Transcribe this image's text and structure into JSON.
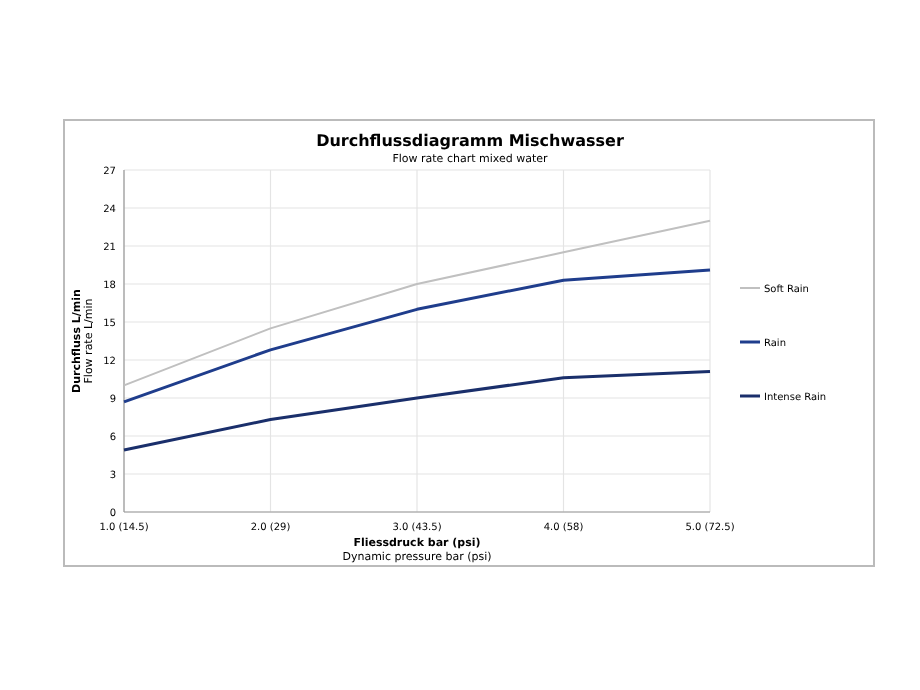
{
  "chart_data": {
    "type": "line",
    "title": "Durchflussdiagramm Mischwasser",
    "subtitle": "Flow rate chart mixed water",
    "xlabel": "Fliessdruck bar (psi)\nDynamic pressure bar (psi)",
    "ylabel": "Durchfluss L/min\nFlow rate L/min",
    "categories": [
      "1.0 (14.5)",
      "2.0 (29)",
      "3.0 (43.5)",
      "4.0 (58)",
      "5.0 (72.5)"
    ],
    "series": [
      {
        "name": "Soft Rain",
        "color": "#c0c0c0",
        "values": [
          10,
          14.5,
          18,
          20.5,
          23
        ]
      },
      {
        "name": "Rain",
        "color": "#1f3d8c",
        "values": [
          8.7,
          12.8,
          16,
          18.3,
          19.1
        ]
      },
      {
        "name": "Intense Rain",
        "color": "#1a2f6b",
        "values": [
          4.9,
          7.3,
          9,
          10.6,
          11.1
        ]
      }
    ],
    "ylim": [
      0,
      27
    ],
    "yticks": [
      0,
      3,
      6,
      9,
      12,
      15,
      18,
      21,
      24,
      27
    ],
    "grid": true,
    "legend": "right"
  }
}
